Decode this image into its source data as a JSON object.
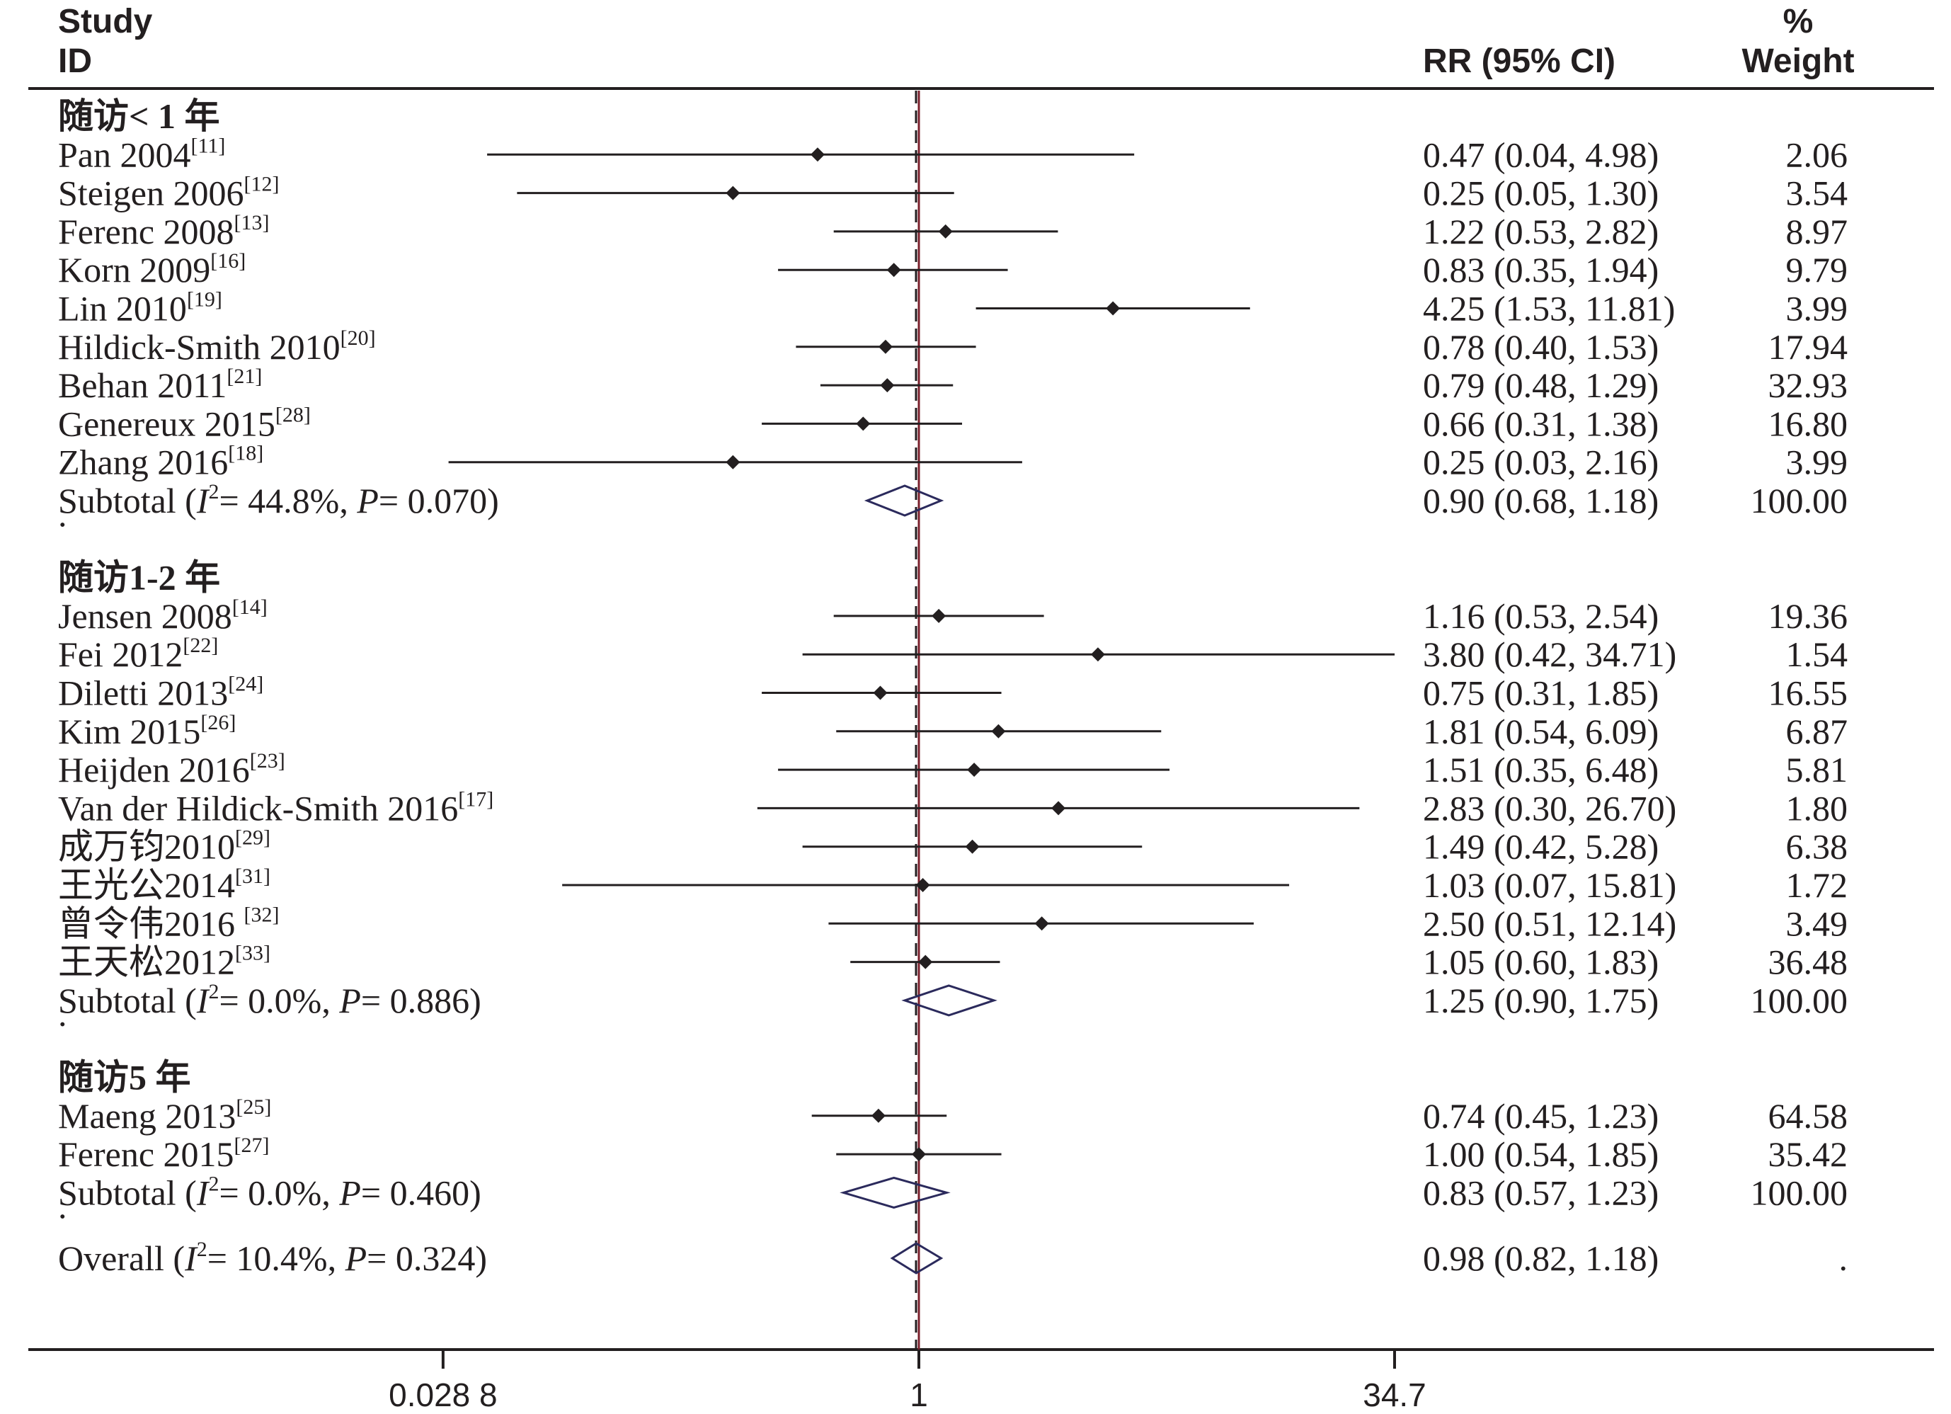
{
  "chart_data": {
    "type": "forest",
    "header": {
      "study_l1": "Study",
      "study_l2": "ID",
      "rr": "RR (95% CI)",
      "weight_l1": "%",
      "weight_l2": "Weight"
    },
    "xscale": "log",
    "xticks": [
      {
        "label": "0.028 8",
        "value": 0.0288
      },
      {
        "label": "1",
        "value": 1
      },
      {
        "label": "34.7",
        "value": 34.7
      }
    ],
    "reference_line": 1,
    "groups": [
      {
        "title": "随访< 1 年",
        "studies": [
          {
            "name": "Pan 2004",
            "ref": "[11]",
            "rr": 0.47,
            "lo": 0.04,
            "hi": 4.98,
            "ci_text": "0.47 (0.04, 4.98)",
            "weight": "2.06"
          },
          {
            "name": "Steigen 2006",
            "ref": "[12]",
            "rr": 0.25,
            "lo": 0.05,
            "hi": 1.3,
            "ci_text": "0.25 (0.05, 1.30)",
            "weight": "3.54"
          },
          {
            "name": "Ferenc 2008",
            "ref": "[13]",
            "rr": 1.22,
            "lo": 0.53,
            "hi": 2.82,
            "ci_text": "1.22 (0.53, 2.82)",
            "weight": "8.97"
          },
          {
            "name": "Korn 2009",
            "ref": "[16]",
            "rr": 0.83,
            "lo": 0.35,
            "hi": 1.94,
            "ci_text": "0.83 (0.35, 1.94)",
            "weight": "9.79"
          },
          {
            "name": "Lin 2010",
            "ref": "[19]",
            "rr": 4.25,
            "lo": 1.53,
            "hi": 11.81,
            "ci_text": "4.25 (1.53, 11.81)",
            "weight": "3.99"
          },
          {
            "name": "Hildick-Smith 2010",
            "ref": "[20]",
            "rr": 0.78,
            "lo": 0.4,
            "hi": 1.53,
            "ci_text": "0.78 (0.40, 1.53)",
            "weight": "17.94"
          },
          {
            "name": "Behan 2011",
            "ref": "[21]",
            "rr": 0.79,
            "lo": 0.48,
            "hi": 1.29,
            "ci_text": "0.79 (0.48, 1.29)",
            "weight": "32.93"
          },
          {
            "name": "Genereux 2015",
            "ref": "[28]",
            "rr": 0.66,
            "lo": 0.31,
            "hi": 1.38,
            "ci_text": "0.66 (0.31, 1.38)",
            "weight": "16.80"
          },
          {
            "name": "Zhang 2016",
            "ref": "[18]",
            "rr": 0.25,
            "lo": 0.03,
            "hi": 2.16,
            "ci_text": "0.25 (0.03, 2.16)",
            "weight": "3.99"
          }
        ],
        "subtotal": {
          "pre": "Subtotal  (",
          "i2_text": "= 44.8%, ",
          "p_text": "= 0.070)",
          "rr": 0.9,
          "lo": 0.68,
          "hi": 1.18,
          "ci_text": "0.90 (0.68, 1.18)",
          "weight": "100.00"
        }
      },
      {
        "title": "随访1-2 年",
        "studies": [
          {
            "name": "Jensen 2008",
            "ref": "[14]",
            "rr": 1.16,
            "lo": 0.53,
            "hi": 2.54,
            "ci_text": "1.16 (0.53, 2.54)",
            "weight": "19.36"
          },
          {
            "name": "Fei 2012",
            "ref": "[22]",
            "rr": 3.8,
            "lo": 0.42,
            "hi": 34.71,
            "ci_text": "3.80 (0.42, 34.71)",
            "weight": "1.54"
          },
          {
            "name": "Diletti 2013",
            "ref": "[24]",
            "rr": 0.75,
            "lo": 0.31,
            "hi": 1.85,
            "ci_text": "0.75 (0.31, 1.85)",
            "weight": "16.55"
          },
          {
            "name": "Kim 2015",
            "ref": "[26]",
            "rr": 1.81,
            "lo": 0.54,
            "hi": 6.09,
            "ci_text": "1.81 (0.54, 6.09)",
            "weight": "6.87"
          },
          {
            "name": "Heijden 2016",
            "ref": "[23]",
            "rr": 1.51,
            "lo": 0.35,
            "hi": 6.48,
            "ci_text": "1.51 (0.35, 6.48)",
            "weight": "5.81"
          },
          {
            "name": "Van der Hildick-Smith 2016",
            "ref": "[17]",
            "rr": 2.83,
            "lo": 0.3,
            "hi": 26.7,
            "ci_text": "2.83 (0.30, 26.70)",
            "weight": "1.80"
          },
          {
            "name": "成万钧2010",
            "ref": "[29]",
            "rr": 1.49,
            "lo": 0.42,
            "hi": 5.28,
            "ci_text": "1.49 (0.42, 5.28)",
            "weight": "6.38"
          },
          {
            "name": "王光公2014",
            "ref": "[31]",
            "rr": 1.03,
            "lo": 0.07,
            "hi": 15.81,
            "ci_text": "1.03 (0.07, 15.81)",
            "weight": "1.72"
          },
          {
            "name": "曾令伟2016 ",
            "ref": "[32]",
            "rr": 2.5,
            "lo": 0.51,
            "hi": 12.14,
            "ci_text": "2.50 (0.51, 12.14)",
            "weight": "3.49"
          },
          {
            "name": "王天松2012",
            "ref": "[33]",
            "rr": 1.05,
            "lo": 0.6,
            "hi": 1.83,
            "ci_text": "1.05 (0.60, 1.83)",
            "weight": "36.48"
          }
        ],
        "subtotal": {
          "pre": "Subtotal  (",
          "i2_text": "= 0.0%, ",
          "p_text": "= 0.886)",
          "rr": 1.25,
          "lo": 0.9,
          "hi": 1.75,
          "ci_text": "1.25 (0.90, 1.75)",
          "weight": "100.00"
        }
      },
      {
        "title": "随访5 年",
        "studies": [
          {
            "name": "Maeng 2013",
            "ref": "[25]",
            "rr": 0.74,
            "lo": 0.45,
            "hi": 1.23,
            "ci_text": "0.74 (0.45, 1.23)",
            "weight": "64.58"
          },
          {
            "name": "Ferenc 2015",
            "ref": "[27]",
            "rr": 1.0,
            "lo": 0.54,
            "hi": 1.85,
            "ci_text": "1.00 (0.54, 1.85)",
            "weight": "35.42"
          }
        ],
        "subtotal": {
          "pre": "Subtotal  (",
          "i2_text": "= 0.0%, ",
          "p_text": "= 0.460)",
          "rr": 0.83,
          "lo": 0.57,
          "hi": 1.23,
          "ci_text": "0.83 (0.57, 1.23)",
          "weight": "100.00"
        }
      }
    ],
    "overall": {
      "pre": "Overall  (",
      "i2_text": "= 10.4%, ",
      "p_text": "= 0.324)",
      "rr": 0.98,
      "lo": 0.82,
      "hi": 1.18,
      "ci_text": "0.98 (0.82, 1.18)",
      "weight": "."
    },
    "separator": ".",
    "colors": {
      "text": "#231f20",
      "diamond": "#2b2a5c",
      "reference_line": "#7a1f2b",
      "axis": "#231f20"
    }
  }
}
